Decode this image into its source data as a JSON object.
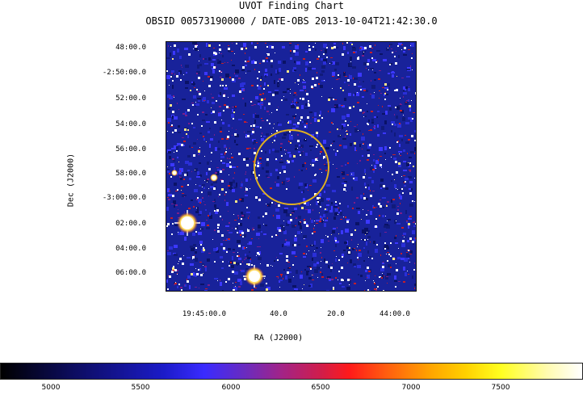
{
  "header": {
    "title": "UVOT Finding Chart",
    "subtitle": "OBSID 00573190000 / DATE-OBS 2013-10-04T21:42:30.0"
  },
  "axes": {
    "y_label": "Dec (J2000)",
    "x_label": "RA (J2000)",
    "dec_ticks": [
      "48:00.0",
      "-2:50:00.0",
      "52:00.0",
      "54:00.0",
      "56:00.0",
      "58:00.0",
      "-3:00:00.0",
      "02:00.0",
      "04:00.0",
      "06:00.0"
    ],
    "ra_ticks": [
      "19:45:00.0",
      "40.0",
      "20.0",
      "44:00.0"
    ]
  },
  "colorbar": {
    "ticks": [
      "5000",
      "5500",
      "6000",
      "6500",
      "7000",
      "7500"
    ]
  },
  "colors": {
    "background_noise": "#18229a",
    "circle": "#e0b020",
    "noise_red": "#c41e2a",
    "star": "#ffffff"
  }
}
